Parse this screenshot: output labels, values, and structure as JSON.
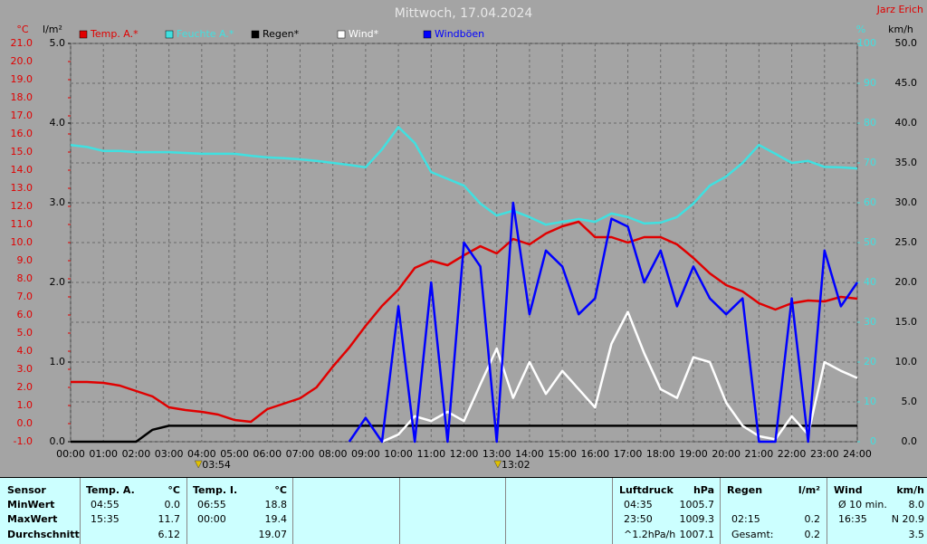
{
  "chart_data": {
    "type": "line",
    "title": "Mittwoch, 17.04.2024",
    "author": "Jarz Erich",
    "x": [
      0,
      0.5,
      1,
      1.5,
      2,
      2.5,
      3,
      3.5,
      4,
      4.5,
      5,
      5.5,
      6,
      6.5,
      7,
      7.5,
      8,
      8.5,
      9,
      9.5,
      10,
      10.5,
      11,
      11.5,
      12,
      12.5,
      13,
      13.5,
      14,
      14.5,
      15,
      15.5,
      16,
      16.5,
      17,
      17.5,
      18,
      18.5,
      19,
      19.5,
      20,
      20.5,
      21,
      21.5,
      22,
      22.5,
      23,
      23.5,
      24
    ],
    "xlim": [
      0,
      24
    ],
    "xticks": [
      {
        "value": 0,
        "label": "00:00"
      },
      {
        "value": 1,
        "label": "01:00"
      },
      {
        "value": 2,
        "label": "02:00"
      },
      {
        "value": 3,
        "label": "03:00"
      },
      {
        "value": 4,
        "label": "04:00"
      },
      {
        "value": 5,
        "label": "05:00"
      },
      {
        "value": 6,
        "label": "06:00"
      },
      {
        "value": 7,
        "label": "07:00"
      },
      {
        "value": 8,
        "label": "08:00"
      },
      {
        "value": 9,
        "label": "09:00"
      },
      {
        "value": 10,
        "label": "10:00"
      },
      {
        "value": 11,
        "label": "11:00"
      },
      {
        "value": 12,
        "label": "12:00"
      },
      {
        "value": 13,
        "label": "13:00"
      },
      {
        "value": 14,
        "label": "14:00"
      },
      {
        "value": 15,
        "label": "15:00"
      },
      {
        "value": 16,
        "label": "16:00"
      },
      {
        "value": 17,
        "label": "17:00"
      },
      {
        "value": 18,
        "label": "18:00"
      },
      {
        "value": 19,
        "label": "19:00"
      },
      {
        "value": 20,
        "label": "20:00"
      },
      {
        "value": 21,
        "label": "21:00"
      },
      {
        "value": 22,
        "label": "22:00"
      },
      {
        "value": 23,
        "label": "23:00"
      },
      {
        "value": 24,
        "label": "24:00"
      }
    ],
    "axes": [
      {
        "id": "temp",
        "unit": "°C",
        "color": "#e00000",
        "lim": [
          -1,
          21
        ],
        "ticks": [
          {
            "value": -1,
            "label": "-1.0"
          },
          {
            "value": 0,
            "label": "0.0"
          },
          {
            "value": 1,
            "label": "1.0"
          },
          {
            "value": 2,
            "label": "2.0"
          },
          {
            "value": 3,
            "label": "3.0"
          },
          {
            "value": 4,
            "label": "4.0"
          },
          {
            "value": 5,
            "label": "5.0"
          },
          {
            "value": 6,
            "label": "6.0"
          },
          {
            "value": 7,
            "label": "7.0"
          },
          {
            "value": 8,
            "label": "8.0"
          },
          {
            "value": 9,
            "label": "9.0"
          },
          {
            "value": 10,
            "label": "10.0"
          },
          {
            "value": 11,
            "label": "11.0"
          },
          {
            "value": 12,
            "label": "12.0"
          },
          {
            "value": 13,
            "label": "13.0"
          },
          {
            "value": 14,
            "label": "14.0"
          },
          {
            "value": 15,
            "label": "15.0"
          },
          {
            "value": 16,
            "label": "16.0"
          },
          {
            "value": 17,
            "label": "17.0"
          },
          {
            "value": 18,
            "label": "18.0"
          },
          {
            "value": 19,
            "label": "19.0"
          },
          {
            "value": 20,
            "label": "20.0"
          },
          {
            "value": 21,
            "label": "21.0"
          }
        ]
      },
      {
        "id": "rain",
        "unit": "l/m²",
        "color": "#000000",
        "lim": [
          0,
          5
        ],
        "ticks": [
          {
            "value": 0,
            "label": "0.0"
          },
          {
            "value": 1,
            "label": "1.0"
          },
          {
            "value": 2,
            "label": "2.0"
          },
          {
            "value": 3,
            "label": "3.0"
          },
          {
            "value": 4,
            "label": "4.0"
          },
          {
            "value": 5,
            "label": "5.0"
          }
        ]
      },
      {
        "id": "hum",
        "unit": "%",
        "color": "#40e0e0",
        "lim": [
          0,
          100
        ],
        "ticks": [
          0,
          10,
          20,
          30,
          40,
          50,
          60,
          70,
          80,
          90,
          100
        ]
      },
      {
        "id": "wind",
        "unit": "km/h",
        "color": "#000000",
        "lim": [
          0,
          50
        ],
        "ticks": [
          {
            "value": 0,
            "label": "0.0"
          },
          {
            "value": 5,
            "label": "5.0"
          },
          {
            "value": 10,
            "label": "10.0"
          },
          {
            "value": 15,
            "label": "15.0"
          },
          {
            "value": 20,
            "label": "20.0"
          },
          {
            "value": 25,
            "label": "25.0"
          },
          {
            "value": 30,
            "label": "30.0"
          },
          {
            "value": 35,
            "label": "35.0"
          },
          {
            "value": 40,
            "label": "40.0"
          },
          {
            "value": 45,
            "label": "45.0"
          },
          {
            "value": 50,
            "label": "50.0"
          }
        ]
      }
    ],
    "grid": true,
    "series": [
      {
        "name": "Temp. A.*",
        "color": "#e00000",
        "axis": "temp",
        "values": [
          2.3,
          2.3,
          2.25,
          2.1,
          1.8,
          1.5,
          0.9,
          0.75,
          0.65,
          0.5,
          0.2,
          0.1,
          0.8,
          1.1,
          1.4,
          2.0,
          3.15,
          4.2,
          5.4,
          6.5,
          7.4,
          8.6,
          9.0,
          8.75,
          9.3,
          9.8,
          9.4,
          10.2,
          9.9,
          10.5,
          10.9,
          11.15,
          10.3,
          10.3,
          10.0,
          10.3,
          10.3,
          9.9,
          9.15,
          8.3,
          7.65,
          7.3,
          6.65,
          6.3,
          6.65,
          6.8,
          6.75,
          7.0,
          6.9
        ]
      },
      {
        "name": "Feuchte A.*",
        "color": "#40e0e0",
        "axis": "hum",
        "values": [
          74.5,
          74,
          73,
          73,
          72.7,
          72.7,
          72.7,
          72.5,
          72.3,
          72.3,
          72.3,
          71.8,
          71.4,
          71.2,
          70.9,
          70.5,
          70,
          69.5,
          68.9,
          73.4,
          79,
          75,
          67.7,
          66,
          64.3,
          59.8,
          56.8,
          58,
          56.4,
          54.5,
          55.2,
          55.9,
          55.2,
          57.3,
          56.4,
          54.8,
          55,
          56.4,
          59.8,
          64.3,
          66.6,
          70,
          74.5,
          72.3,
          70,
          70.5,
          69,
          68.9,
          68.6
        ]
      },
      {
        "name": "Regen*",
        "color": "#000000",
        "axis": "rain",
        "values": [
          0,
          0,
          0,
          0,
          0,
          0.15,
          0.2,
          0.2,
          0.2,
          0.2,
          0.2,
          0.2,
          0.2,
          0.2,
          0.2,
          0.2,
          0.2,
          0.2,
          0.2,
          0.2,
          0.2,
          0.2,
          0.2,
          0.2,
          0.2,
          0.2,
          0.2,
          0.2,
          0.2,
          0.2,
          0.2,
          0.2,
          0.2,
          0.2,
          0.2,
          0.2,
          0.2,
          0.2,
          0.2,
          0.2,
          0.2,
          0.2,
          0.2,
          0.2,
          0.2,
          0.2,
          0.2,
          0.2,
          0.2
        ]
      },
      {
        "name": "Wind*",
        "color": "#ffffff",
        "axis": "wind",
        "values": [
          null,
          null,
          null,
          null,
          null,
          null,
          null,
          null,
          null,
          null,
          null,
          null,
          null,
          null,
          null,
          null,
          null,
          null,
          null,
          0,
          0.9,
          3.2,
          2.6,
          3.75,
          2.6,
          7.2,
          11.7,
          5.5,
          10,
          6,
          8.9,
          6.6,
          4.3,
          12.3,
          16.3,
          11.1,
          6.6,
          5.5,
          10.6,
          10,
          4.9,
          2,
          0.7,
          0.3,
          3.2,
          0.9,
          10,
          8.9,
          8
        ]
      },
      {
        "name": "Windböen",
        "color": "#0000ff",
        "axis": "wind",
        "values": [
          null,
          null,
          null,
          null,
          null,
          null,
          null,
          null,
          null,
          null,
          null,
          null,
          null,
          null,
          null,
          null,
          null,
          0,
          3,
          0,
          17,
          0,
          20,
          0,
          25,
          22,
          0,
          30,
          16,
          24,
          22,
          16,
          18,
          28,
          27,
          20,
          24,
          17,
          22,
          18,
          16,
          18,
          0,
          0,
          18,
          0,
          24,
          17,
          20
        ]
      }
    ],
    "annotations": [
      {
        "x": 3.9,
        "label": "03:54"
      },
      {
        "x": 13.0333,
        "label": "13:02"
      }
    ]
  },
  "table": {
    "header": "Sensor",
    "rows": [
      "MinWert",
      "MaxWert",
      "Durchschnitt"
    ],
    "groups": [
      {
        "name": "Temp. A.",
        "unit": "°C",
        "cells": [
          [
            "04:55",
            "0.0"
          ],
          [
            "15:35",
            "11.7"
          ],
          [
            null,
            "6.12"
          ]
        ]
      },
      {
        "name": "Temp. I.",
        "unit": "°C",
        "cells": [
          [
            "06:55",
            "18.8"
          ],
          [
            "00:00",
            "19.4"
          ],
          [
            null,
            "19.07"
          ]
        ]
      },
      {
        "name": "Luftdruck",
        "unit": "hPa",
        "cells": [
          [
            "04:35",
            "1005.7"
          ],
          [
            "23:50",
            "1009.3"
          ],
          [
            "^1.2hPa/h",
            "1007.1"
          ]
        ]
      },
      {
        "name": "Regen",
        "unit": "l/m²",
        "cells": [
          [
            null,
            null
          ],
          [
            "02:15",
            "0.2"
          ],
          [
            "Gesamt:",
            "0.2"
          ]
        ]
      },
      {
        "name": "Wind",
        "unit": "km/h",
        "cells": [
          [
            "Ø 10 min.",
            "8.0"
          ],
          [
            "16:35",
            "N 20.9"
          ],
          [
            null,
            "3.5"
          ]
        ]
      }
    ]
  }
}
